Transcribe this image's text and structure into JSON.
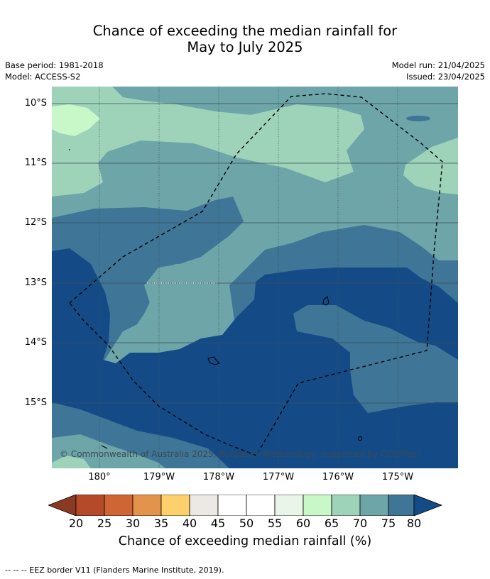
{
  "title_line1": "Chance of exceeding the median rainfall for",
  "title_line2": "May to July 2025",
  "base_period": "Base period: 1981-2018",
  "model": "Model: ACCESS-S2",
  "model_run": "Model run: 21/04/2025",
  "issued": "Issued: 23/04/2025",
  "lat_labels": [
    "10°S",
    "11°S",
    "12°S",
    "13°S",
    "14°S",
    "15°S"
  ],
  "lon_labels": [
    "180°",
    "179°W",
    "178°W",
    "177°W",
    "176°W",
    "175°W"
  ],
  "copyright": "© Commonwealth of Australia 2025, Bureau of Meteorology, supported by COSPPac",
  "colorbar": {
    "title": "Chance of exceeding median rainfall (%)",
    "ticks": [
      "20",
      "25",
      "30",
      "35",
      "40",
      "45",
      "50",
      "55",
      "60",
      "65",
      "70",
      "75",
      "80"
    ],
    "colors": {
      "below_20": "#8b3a22",
      "20-25": "#b54a28",
      "25-30": "#cf6535",
      "30-35": "#e3944a",
      "35-40": "#fdd06b",
      "40-45": "#ece8e4",
      "45-50": "#ffffff",
      "50-55": "#ffffff",
      "55-60": "#e8f5e8",
      "60-65": "#c8f7c8",
      "65-70": "#9ed3b9",
      "70-75": "#6da5a9",
      "75-80": "#3f7596",
      "above_80": "#144b87"
    }
  },
  "footer": "-- -- -- EEZ border V11 (Flanders Marine Institute, 2019)."
}
